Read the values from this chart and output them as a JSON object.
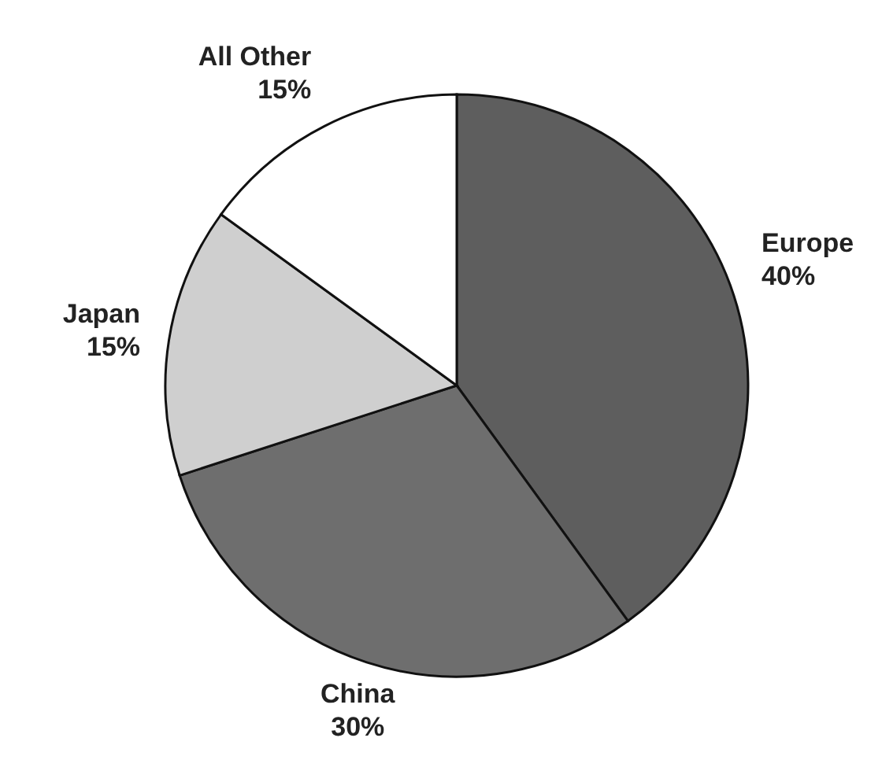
{
  "chart_data": {
    "type": "pie",
    "categories": [
      "Europe",
      "China",
      "Japan",
      "All Other"
    ],
    "values": [
      40,
      30,
      15,
      15
    ],
    "colors": [
      "#5e5e5e",
      "#6e6e6e",
      "#cfcfcf",
      "#ffffff"
    ],
    "value_labels": [
      "40%",
      "30%",
      "15%",
      "15%"
    ]
  }
}
